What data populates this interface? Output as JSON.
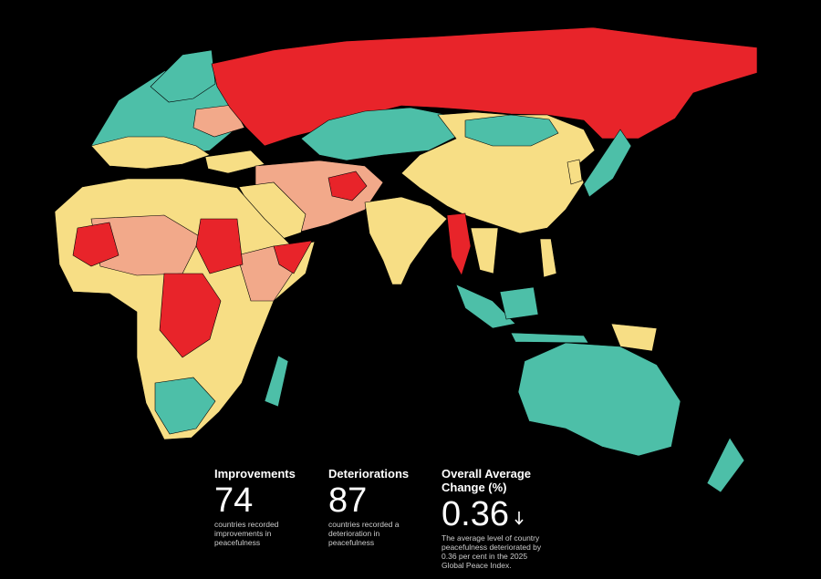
{
  "stats": [
    {
      "title": "Improvements",
      "value": 74,
      "description": "countries recorded improvements in peacefulness"
    },
    {
      "title": "Deteriorations",
      "value": 87,
      "description": "countries recorded a deterioration in peacefulness"
    },
    {
      "title": "Overall Average Change (%)",
      "value": 0.36,
      "description": "The average level of country peacefulness deteriorated by 0.36 per cent in the 2025 Global Peace Index."
    }
  ]
}
